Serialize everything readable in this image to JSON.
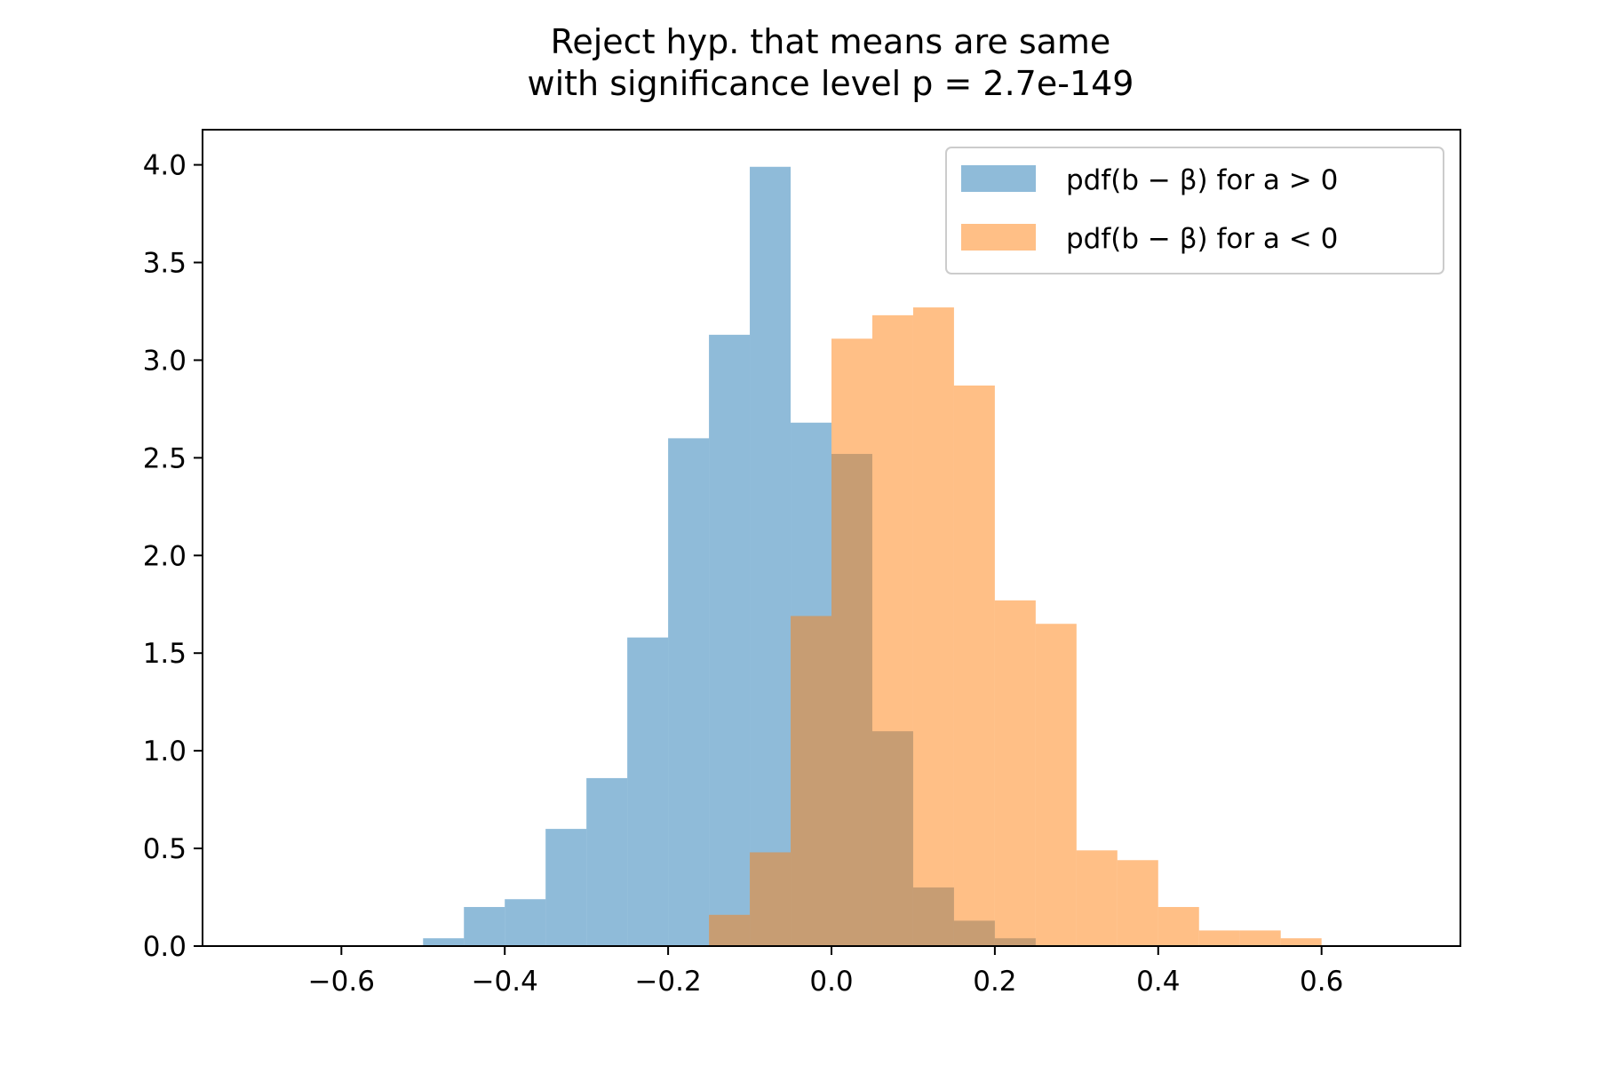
{
  "chart_data": {
    "type": "bar",
    "subtype": "histogram",
    "title_lines": [
      "Reject hyp. that means are same",
      "with significance level p = 2.7e-149"
    ],
    "xlabel": "",
    "ylabel": "",
    "xlim": [
      -0.77,
      0.77
    ],
    "ylim": [
      0,
      4.18
    ],
    "xticks": [
      -0.6,
      -0.4,
      -0.2,
      0.0,
      0.2,
      0.4,
      0.6
    ],
    "xtick_labels": [
      "−0.6",
      "−0.4",
      "−0.2",
      "0.0",
      "0.2",
      "0.4",
      "0.6"
    ],
    "yticks": [
      0.0,
      0.5,
      1.0,
      1.5,
      2.0,
      2.5,
      3.0,
      3.5,
      4.0
    ],
    "ytick_labels": [
      "0.0",
      "0.5",
      "1.0",
      "1.5",
      "2.0",
      "2.5",
      "3.0",
      "3.5",
      "4.0"
    ],
    "grid": false,
    "legend_position": "top-right",
    "series": [
      {
        "name": "pdf(b − β) for a > 0",
        "color": "#1f77b4",
        "opacity": 0.5,
        "bin_edges": [
          -0.5,
          -0.45,
          -0.4,
          -0.35,
          -0.3,
          -0.25,
          -0.2,
          -0.15,
          -0.1,
          -0.05,
          0.0,
          0.05,
          0.1,
          0.15,
          0.2,
          0.25
        ],
        "density": [
          0.04,
          0.2,
          0.24,
          0.6,
          0.86,
          1.58,
          2.6,
          3.13,
          3.99,
          2.68,
          2.52,
          1.1,
          0.3,
          0.13,
          0.04
        ]
      },
      {
        "name": "pdf(b − β) for a < 0",
        "color": "#ff7f0e",
        "opacity": 0.5,
        "bin_edges": [
          -0.15,
          -0.1,
          -0.05,
          0.0,
          0.05,
          0.1,
          0.15,
          0.2,
          0.25,
          0.3,
          0.35,
          0.4,
          0.45,
          0.5,
          0.55,
          0.6
        ],
        "density": [
          0.16,
          0.48,
          1.69,
          3.11,
          3.23,
          3.27,
          2.87,
          1.77,
          1.65,
          0.49,
          0.44,
          0.2,
          0.08,
          0.08,
          0.04
        ]
      }
    ]
  }
}
